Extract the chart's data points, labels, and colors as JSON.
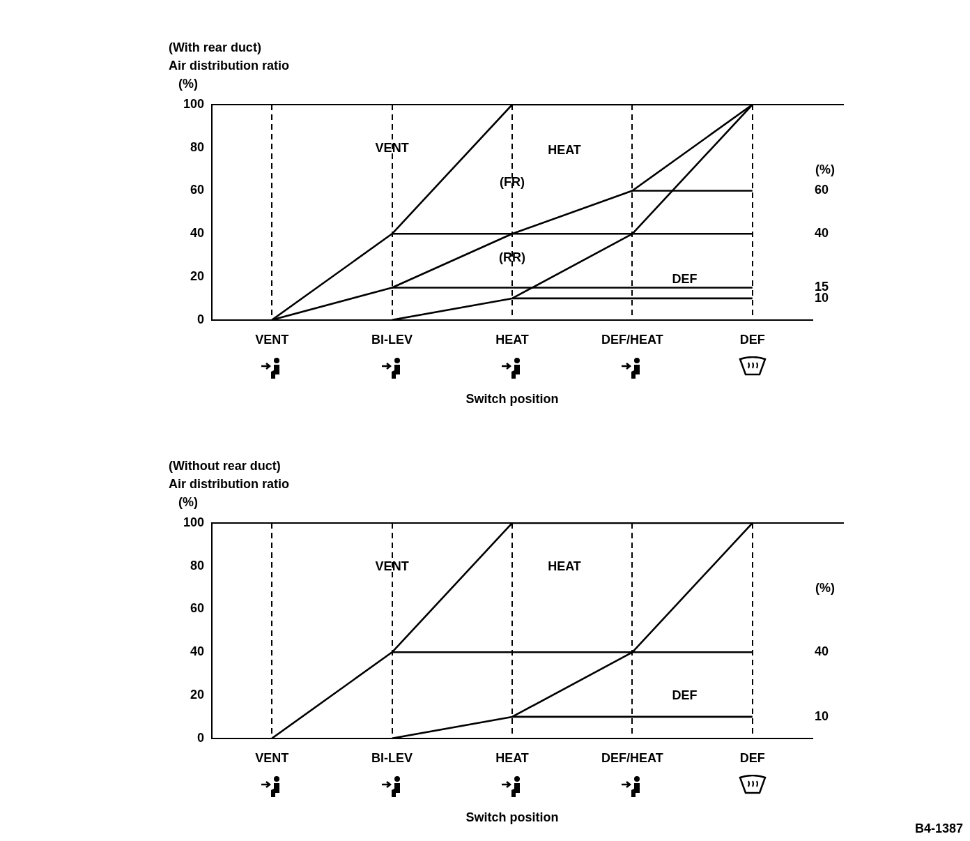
{
  "chart_data": [
    {
      "type": "line",
      "title": "(With rear duct)",
      "ylabel": "Air distribution ratio (%)",
      "xlabel": "Switch position",
      "y2label": "(%)",
      "categories": [
        "VENT",
        "BI-LEV",
        "HEAT",
        "DEF/HEAT",
        "DEF"
      ],
      "series": [
        {
          "color": "#000000",
          "values": [
            0,
            40,
            100,
            100,
            100
          ]
        },
        {
          "color": "#000000",
          "values": [
            0,
            15,
            40,
            60,
            100
          ]
        },
        {
          "color": "#000000",
          "values": [
            null,
            0,
            10,
            40,
            100
          ]
        },
        {
          "color": "#000000",
          "values": [
            null,
            null,
            null,
            60,
            60
          ]
        },
        {
          "color": "#000000",
          "values": [
            null,
            40,
            40,
            40,
            40
          ]
        },
        {
          "color": "#000000",
          "values": [
            null,
            15,
            15,
            15,
            15
          ]
        },
        {
          "color": "#000000",
          "values": [
            null,
            null,
            10,
            10,
            10
          ]
        }
      ],
      "ylim": [
        0,
        100
      ],
      "yticks": [
        0,
        20,
        40,
        60,
        80,
        100
      ],
      "y2lim": [
        0,
        100
      ],
      "y2ticks": [
        10,
        15,
        40,
        60
      ],
      "grid": "x",
      "legend": false,
      "annotations": [
        "VENT",
        "HEAT",
        "(FR)",
        "(RR)",
        "DEF"
      ]
    },
    {
      "type": "line",
      "title": "(Without rear duct)",
      "ylabel": "Air distribution ratio (%)",
      "xlabel": "Switch position",
      "y2label": "(%)",
      "categories": [
        "VENT",
        "BI-LEV",
        "HEAT",
        "DEF/HEAT",
        "DEF"
      ],
      "series": [
        {
          "color": "#000000",
          "values": [
            0,
            40,
            100,
            100,
            100
          ]
        },
        {
          "color": "#000000",
          "values": [
            null,
            0,
            10,
            40,
            100
          ]
        },
        {
          "color": "#000000",
          "values": [
            null,
            40,
            40,
            40,
            40
          ]
        },
        {
          "color": "#000000",
          "values": [
            null,
            null,
            10,
            10,
            10
          ]
        }
      ],
      "ylim": [
        0,
        100
      ],
      "yticks": [
        0,
        20,
        40,
        60,
        80,
        100
      ],
      "y2lim": [
        0,
        100
      ],
      "y2ticks": [
        10,
        40
      ],
      "grid": "x",
      "legend": false,
      "annotations": [
        "VENT",
        "HEAT",
        "DEF",
        "B4-1387"
      ]
    }
  ]
}
